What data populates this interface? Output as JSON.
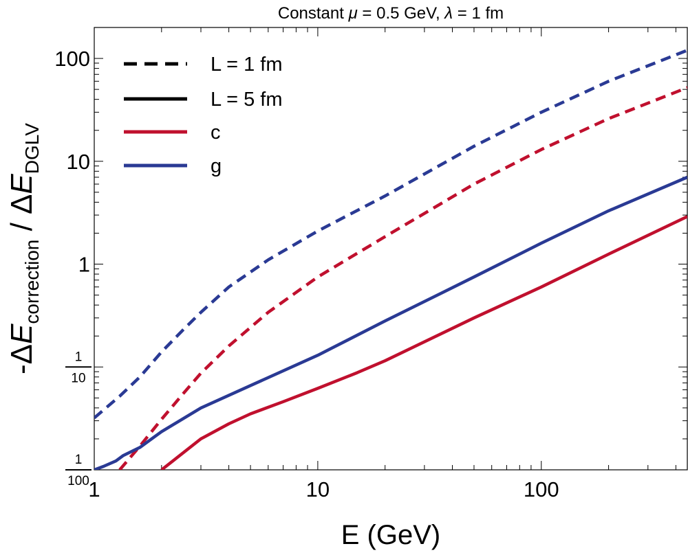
{
  "chart_data": {
    "type": "line",
    "title": "Constant μ = 0.5 GeV, λ = 1 fm",
    "title_parts": {
      "prefix": "Constant ",
      "mu_symbol": "μ",
      "mu_value": " = 0.5 GeV, ",
      "lambda_symbol": "λ",
      "lambda_value": " = 1 fm"
    },
    "xlabel": "E (GeV)",
    "ylabel": "-ΔE_correction / ΔE_DGLV",
    "ylabel_parts": {
      "prefix": "-Δ",
      "E1": "E",
      "sub1": "correction",
      "sep": " / Δ",
      "E2": "E",
      "sub2": "DGLV"
    },
    "x_scale": "log",
    "y_scale": "log",
    "xlim": [
      1,
      450
    ],
    "ylim": [
      0.01,
      200
    ],
    "x_ticks": [
      {
        "value": 1,
        "label": "1"
      },
      {
        "value": 10,
        "label": "10"
      },
      {
        "value": 100,
        "label": "100"
      }
    ],
    "y_ticks": [
      {
        "value": 0.01,
        "label": "",
        "frac_num": "1",
        "frac_den": "100"
      },
      {
        "value": 0.1,
        "label": "",
        "frac_num": "1",
        "frac_den": "10"
      },
      {
        "value": 1,
        "label": "1"
      },
      {
        "value": 10,
        "label": "10"
      },
      {
        "value": 100,
        "label": "100"
      }
    ],
    "grid": false,
    "legend_position": "top-left",
    "legend": [
      {
        "label": "L = 1 fm",
        "style": "dashed",
        "color": "#000000"
      },
      {
        "label": "L = 5 fm",
        "style": "solid",
        "color": "#000000"
      },
      {
        "label": "c",
        "style": "solid",
        "color": "#C0102E"
      },
      {
        "label": "g",
        "style": "solid",
        "color": "#2A3A94"
      }
    ],
    "series": [
      {
        "name": "g, L = 1 fm",
        "color": "#2A3A94",
        "style": "dashed",
        "x": [
          1,
          1.3,
          1.6,
          2,
          2.5,
          3,
          4,
          6,
          10,
          20,
          50,
          100,
          200,
          450
        ],
        "y": [
          0.032,
          0.052,
          0.08,
          0.14,
          0.23,
          0.34,
          0.6,
          1.1,
          2.1,
          4.6,
          14,
          30,
          60,
          120
        ]
      },
      {
        "name": "c, L = 1 fm",
        "color": "#C0102E",
        "style": "dashed",
        "x": [
          1.3,
          1.6,
          2,
          2.5,
          3,
          4,
          6,
          10,
          20,
          50,
          100,
          200,
          450
        ],
        "y": [
          0.01,
          0.017,
          0.031,
          0.055,
          0.087,
          0.16,
          0.34,
          0.75,
          1.85,
          6,
          13,
          26,
          52
        ]
      },
      {
        "name": "g, L = 5 fm",
        "color": "#2A3A94",
        "style": "solid",
        "x": [
          1,
          1.1,
          1.25,
          1.35,
          1.6,
          2,
          3,
          5,
          10,
          20,
          50,
          100,
          200,
          450
        ],
        "y": [
          0.01,
          0.0108,
          0.0122,
          0.0138,
          0.0165,
          0.0235,
          0.04,
          0.066,
          0.13,
          0.28,
          0.75,
          1.6,
          3.3,
          7
        ]
      },
      {
        "name": "c, L = 5 fm",
        "color": "#C0102E",
        "style": "solid",
        "x": [
          2,
          3,
          4,
          5,
          7,
          10,
          15,
          20,
          50,
          100,
          200,
          450
        ],
        "y": [
          0.01,
          0.02,
          0.028,
          0.035,
          0.046,
          0.062,
          0.088,
          0.115,
          0.3,
          0.6,
          1.25,
          2.9
        ]
      }
    ]
  }
}
